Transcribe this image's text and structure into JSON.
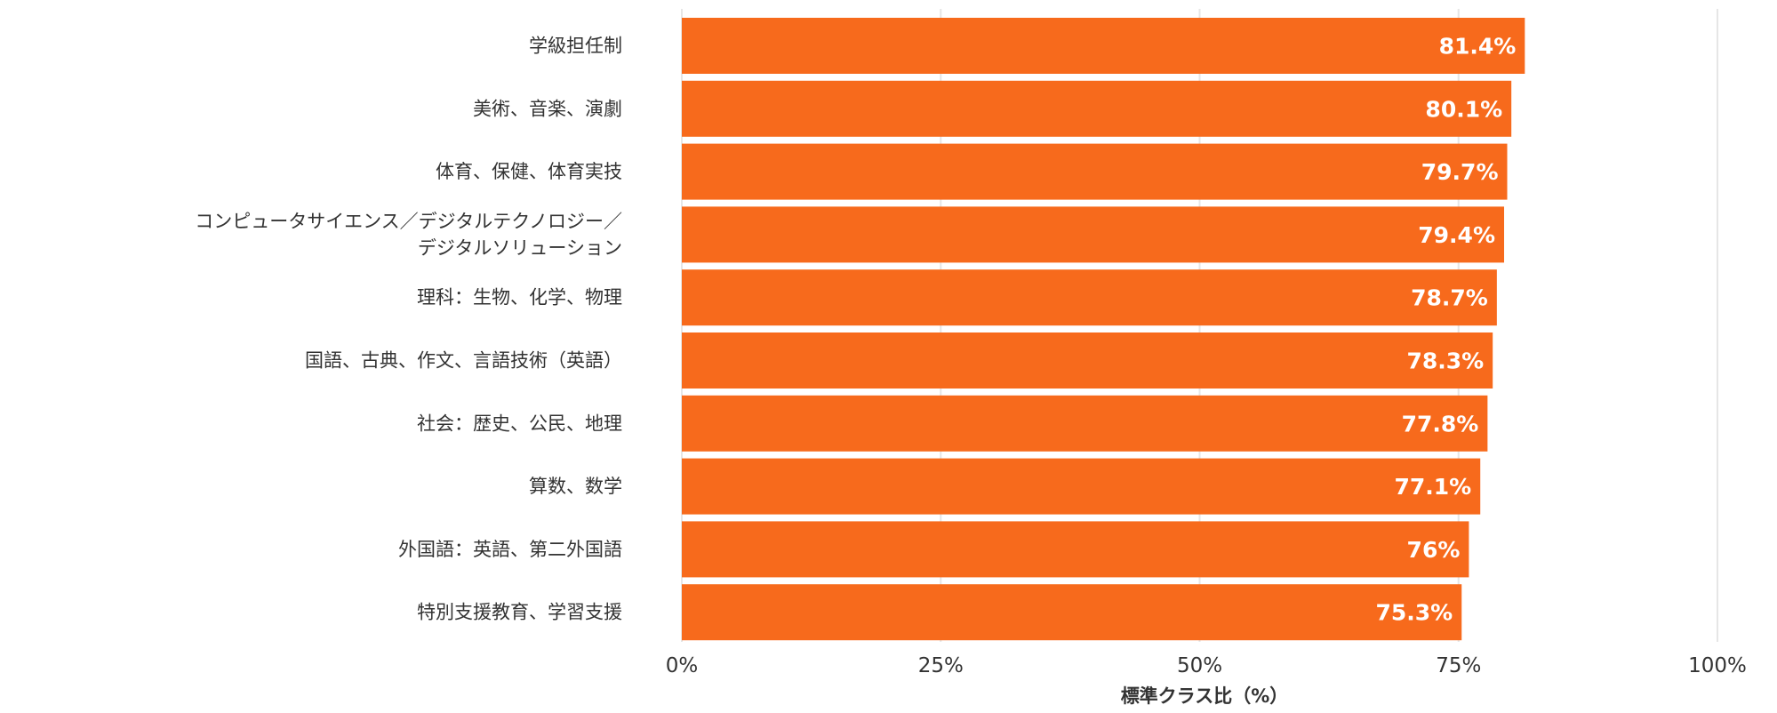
{
  "chart_data": {
    "type": "bar",
    "orientation": "horizontal",
    "categories": [
      [
        "学級担任制"
      ],
      [
        "美術、音楽、演劇"
      ],
      [
        "体育、保健、体育実技"
      ],
      [
        "コンピュータサイエンス／デジタルテクノロジー／",
        "デジタルソリューション"
      ],
      [
        "理科：生物、化学、物理"
      ],
      [
        "国語、古典、作文、言語技術（英語）"
      ],
      [
        "社会：歴史、公民、地理"
      ],
      [
        "算数、数学"
      ],
      [
        "外国語：英語、第二外国語"
      ],
      [
        "特別支援教育、学習支援"
      ]
    ],
    "values": [
      81.4,
      80.1,
      79.7,
      79.4,
      78.7,
      78.3,
      77.8,
      77.1,
      76,
      75.3
    ],
    "value_labels": [
      "81.4%",
      "80.1%",
      "79.7%",
      "79.4%",
      "78.7%",
      "78.3%",
      "77.8%",
      "77.1%",
      "76%",
      "75.3%"
    ],
    "xlim": [
      0,
      100
    ],
    "xticks": [
      0,
      25,
      50,
      75,
      100
    ],
    "xtick_labels": [
      "0%",
      "25%",
      "50%",
      "75%",
      "100%"
    ],
    "xlabel": "標準クラス比（%）",
    "grid": true,
    "bar_color": "#F76A1C",
    "grid_color": "#E6E6E6"
  }
}
